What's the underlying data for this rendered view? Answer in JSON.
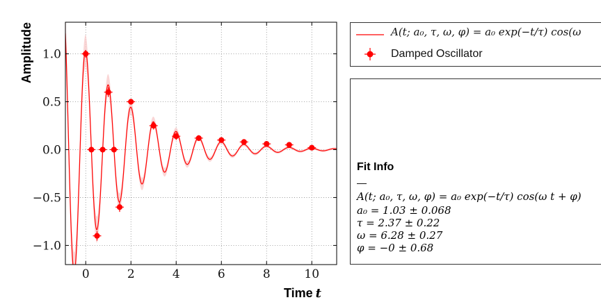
{
  "chart_data": {
    "type": "line",
    "title": "",
    "xlabel": "Time",
    "xlabel_var": "t",
    "ylabel": "Amplitude",
    "xlim": [
      -0.9,
      11.1
    ],
    "ylim": [
      -1.2,
      1.33
    ],
    "xticks": [
      0,
      2,
      4,
      6,
      8,
      10
    ],
    "xtick_labels": [
      "0",
      "2",
      "4",
      "6",
      "8",
      "10"
    ],
    "yticks": [
      1.0,
      0.5,
      0.0,
      -0.5,
      -1.0
    ],
    "ytick_labels": [
      "1.0",
      "0.5",
      "0.0",
      "−0.5",
      "−1.0"
    ],
    "grid": true,
    "color": "#ff0000",
    "band_color": "#f8c8c8",
    "fit": {
      "a0": 1.03,
      "tau": 2.37,
      "omega": 6.28,
      "phi": 0,
      "band_frac": 0.15
    },
    "series": [
      {
        "name": "Damped Oscillator",
        "x": [
          0,
          0.25,
          0.5,
          0.75,
          1.0,
          1.25,
          1.5,
          2.0,
          3.0,
          4.0,
          5.0,
          6.0,
          7.0,
          8.0,
          9.0,
          10.0
        ],
        "y": [
          1.0,
          0.0,
          -0.9,
          0.0,
          0.6,
          0.0,
          -0.6,
          0.5,
          0.25,
          0.14,
          0.12,
          0.1,
          0.08,
          0.06,
          0.05,
          0.02
        ],
        "yerr": [
          0.04,
          0.02,
          0.05,
          0.02,
          0.05,
          0.02,
          0.05,
          0.03,
          0.04,
          0.04,
          0.03,
          0.03,
          0.03,
          0.03,
          0.03,
          0.02
        ]
      }
    ],
    "legend": {
      "placement": "top-right, outside plot",
      "fit_entry": "A(t; a₀, τ, ω, φ) = a₀ exp(−t/τ) cos(ω",
      "data_entry": "Damped Oscillator"
    },
    "fit_info": {
      "title": "Fit Info",
      "separator": "—",
      "lines": [
        "A(t; a₀, τ, ω, φ) = a₀ exp(−t/τ) cos(ω t + φ)",
        "a₀ = 1.03 ± 0.068",
        "τ = 2.37 ± 0.22",
        "ω = 6.28 ± 0.27",
        "φ = −0 ± 0.68"
      ]
    }
  }
}
